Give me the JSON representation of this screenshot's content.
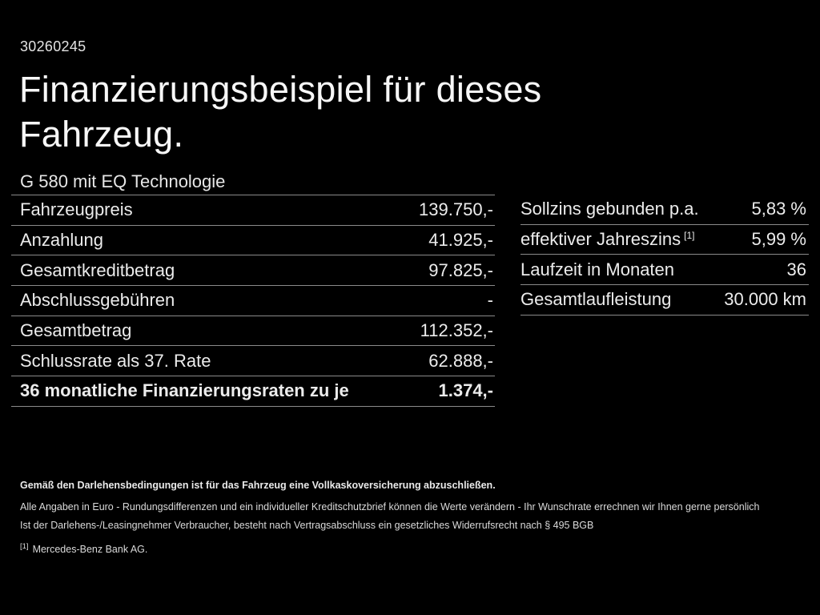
{
  "header": {
    "doc_number": "30260245",
    "title_lines": [
      "Finanzierungsbeispiel für dieses",
      "Fahrzeug."
    ]
  },
  "vehicle": {
    "model": "G 580 mit EQ Technologie"
  },
  "finance_table": {
    "rows": [
      {
        "label": "Fahrzeugpreis",
        "value": "139.750,-"
      },
      {
        "label": "Anzahlung",
        "value": "41.925,-"
      },
      {
        "label": "Gesamtkreditbetrag",
        "value": "97.825,-"
      },
      {
        "label": "Abschlussgebühren",
        "value": "-"
      },
      {
        "label": "Gesamtbetrag",
        "value": "112.352,-"
      },
      {
        "label": "Schlussrate als 37. Rate",
        "value": "62.888,-"
      },
      {
        "label": "36 monatliche Finanzierungsraten zu je",
        "value": "1.374,-"
      }
    ]
  },
  "conditions_table": {
    "rows": [
      {
        "label": "Sollzins gebunden p.a.",
        "sup": "",
        "value": "5,83 %"
      },
      {
        "label": "effektiver Jahreszins",
        "sup": "[1]",
        "value": "5,99 %"
      },
      {
        "label": "Laufzeit in Monaten",
        "sup": "",
        "value": "36"
      },
      {
        "label": "Gesamtlaufleistung",
        "sup": "",
        "value": "30.000 km"
      }
    ]
  },
  "footer": {
    "line1": "Gemäß den Darlehensbedingungen ist für das Fahrzeug eine Vollkaskoversicherung abzuschließen.",
    "line2": "Alle Angaben in Euro - Rundungsdifferenzen und ein individueller Kreditschutzbrief können die Werte verändern - Ihr Wunschrate errechnen wir Ihnen gerne persönlich",
    "line3": "Ist der Darlehens-/Leasingnehmer Verbraucher, besteht nach Vertragsabschluss ein gesetzliches Widerrufsrecht nach § 495 BGB",
    "footnote_marker": "[1]",
    "footnote_text": "Mercedes-Benz Bank AG."
  },
  "colors": {
    "background": "#000000",
    "text": "#ededed",
    "divider": "#8a8a8a"
  }
}
